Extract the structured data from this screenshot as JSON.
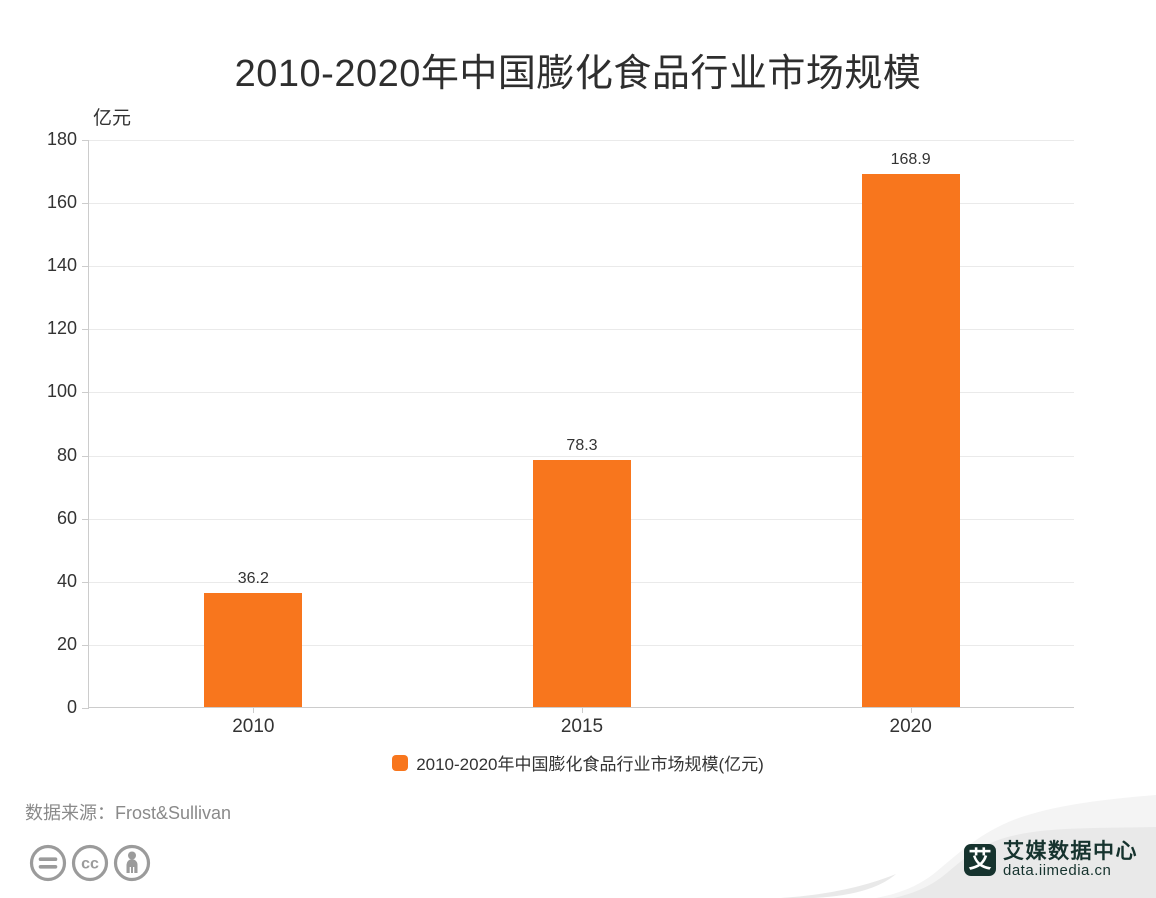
{
  "chart_data": {
    "type": "bar",
    "title": "2010-2020年中国膨化食品行业市场规模",
    "unit_label": "亿元",
    "categories": [
      "2010",
      "2015",
      "2020"
    ],
    "values": [
      36.2,
      78.3,
      168.9
    ],
    "value_labels": [
      "36.2",
      "78.3",
      "168.9"
    ],
    "legend": "2010-2020年中国膨化食品行业市场规模(亿元)",
    "xlabel": "",
    "ylabel": "亿元",
    "ylim": [
      0,
      180
    ],
    "ytick_step": 20,
    "yticks": [
      0,
      20,
      40,
      60,
      80,
      100,
      120,
      140,
      160,
      180
    ],
    "grid": true,
    "legend_position": "bottom",
    "bar_color": "#f8761d"
  },
  "footer": {
    "source": "数据来源：Frost&Sullivan",
    "cc_text": "cc",
    "license_icons": [
      "equals-icon",
      "cc-icon",
      "person-icon"
    ]
  },
  "branding": {
    "logo_glyph": "艾",
    "name": "艾媒数据中心",
    "url": "data.iimedia.cn",
    "color": "#16332e"
  }
}
